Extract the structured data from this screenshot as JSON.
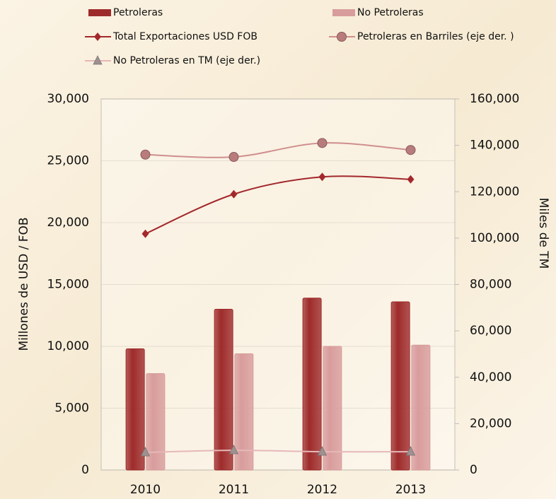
{
  "chart_data": {
    "type": "bar",
    "categories": [
      "2010",
      "2011",
      "2012",
      "2013"
    ],
    "ylabel": "Millones  de USD / FOB",
    "y2label": "Miles  de TM",
    "ylim": [
      0,
      30000
    ],
    "yticks": [
      {
        "value": 0,
        "label": "0"
      },
      {
        "value": 5000,
        "label": "5,000"
      },
      {
        "value": 10000,
        "label": "10,000"
      },
      {
        "value": 15000,
        "label": "15,000"
      },
      {
        "value": 20000,
        "label": "20,000"
      },
      {
        "value": 25000,
        "label": "25,000"
      },
      {
        "value": 30000,
        "label": "30,000"
      }
    ],
    "y2lim": [
      0,
      160000
    ],
    "y2ticks": [
      {
        "value": 0,
        "label": "0"
      },
      {
        "value": 20000,
        "label": "20,000"
      },
      {
        "value": 40000,
        "label": "40,000"
      },
      {
        "value": 60000,
        "label": "60,000"
      },
      {
        "value": 80000,
        "label": "80,000"
      },
      {
        "value": 100000,
        "label": "100,000"
      },
      {
        "value": 120000,
        "label": "120,000"
      },
      {
        "value": 140000,
        "label": "140,000"
      },
      {
        "value": 160000,
        "label": "160,000"
      }
    ],
    "series": [
      {
        "name": "Petroleras",
        "type": "bar",
        "color": "#9e2b2b",
        "values": [
          9800,
          13000,
          13900,
          13600
        ]
      },
      {
        "name": "No Petroleras",
        "type": "bar",
        "color": "#d89c9c",
        "values": [
          7800,
          9400,
          10000,
          10100
        ]
      },
      {
        "name": "Total Exportaciones USD FOB",
        "type": "line",
        "marker": "diamond",
        "color": "#a3282c",
        "values": [
          19100,
          22300,
          23700,
          23500
        ]
      },
      {
        "name": "Petroleras en Barriles (eje der. )",
        "type": "line",
        "marker": "circle",
        "axis": "y2",
        "color": "#cf8e8e",
        "values": [
          136000,
          135000,
          141000,
          138000
        ]
      },
      {
        "name": "No Petroleras en TM (eje der.)",
        "type": "line",
        "marker": "triangle",
        "axis": "y2",
        "color": "#e6b8b8",
        "values": [
          7600,
          8500,
          7900,
          7900
        ]
      }
    ]
  }
}
